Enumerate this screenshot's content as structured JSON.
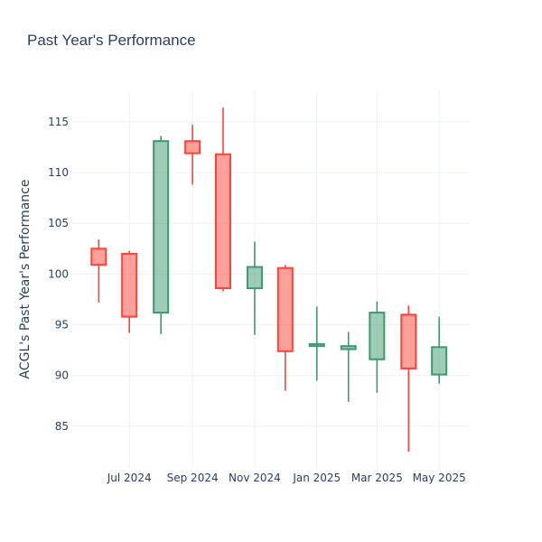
{
  "chart_data": {
    "type": "candlestick",
    "title": "Past Year's Performance",
    "xlabel": "",
    "ylabel": "ACGL's Past Year's Performance",
    "ylim": [
      80.9,
      118.1
    ],
    "yticks": [
      85,
      90,
      95,
      100,
      105,
      110,
      115
    ],
    "xticks": [
      {
        "label": "Jul 2024",
        "date": "2024-07-01"
      },
      {
        "label": "Sep 2024",
        "date": "2024-09-01"
      },
      {
        "label": "Nov 2024",
        "date": "2024-11-01"
      },
      {
        "label": "Jan 2025",
        "date": "2025-01-01"
      },
      {
        "label": "Mar 2025",
        "date": "2025-03-01"
      },
      {
        "label": "May 2025",
        "date": "2025-05-01"
      }
    ],
    "xlim": [
      "2024-05-06",
      "2025-05-31"
    ],
    "grid": true,
    "colors": {
      "increasing": "#3d9970",
      "decreasing": "#ff4136"
    },
    "candles": [
      {
        "date": "2024-06-01",
        "open": 102.5,
        "high": 103.4,
        "low": 97.2,
        "close": 100.9
      },
      {
        "date": "2024-07-01",
        "open": 102.0,
        "high": 102.3,
        "low": 94.2,
        "close": 95.8
      },
      {
        "date": "2024-08-01",
        "open": 96.2,
        "high": 113.6,
        "low": 94.1,
        "close": 113.1
      },
      {
        "date": "2024-09-01",
        "open": 113.1,
        "high": 114.7,
        "low": 108.8,
        "close": 111.9
      },
      {
        "date": "2024-10-01",
        "open": 111.8,
        "high": 116.4,
        "low": 98.3,
        "close": 98.6
      },
      {
        "date": "2024-11-01",
        "open": 98.6,
        "high": 103.2,
        "low": 94.0,
        "close": 100.7
      },
      {
        "date": "2024-12-01",
        "open": 100.6,
        "high": 100.9,
        "low": 88.5,
        "close": 92.4
      },
      {
        "date": "2025-01-01",
        "open": 92.9,
        "high": 96.8,
        "low": 89.5,
        "close": 93.1
      },
      {
        "date": "2025-02-01",
        "open": 92.6,
        "high": 94.3,
        "low": 87.4,
        "close": 92.9
      },
      {
        "date": "2025-03-01",
        "open": 91.6,
        "high": 97.3,
        "low": 88.3,
        "close": 96.2
      },
      {
        "date": "2025-04-01",
        "open": 96.0,
        "high": 96.9,
        "low": 82.5,
        "close": 90.7
      },
      {
        "date": "2025-05-01",
        "open": 90.1,
        "high": 95.8,
        "low": 89.2,
        "close": 92.8
      }
    ]
  }
}
